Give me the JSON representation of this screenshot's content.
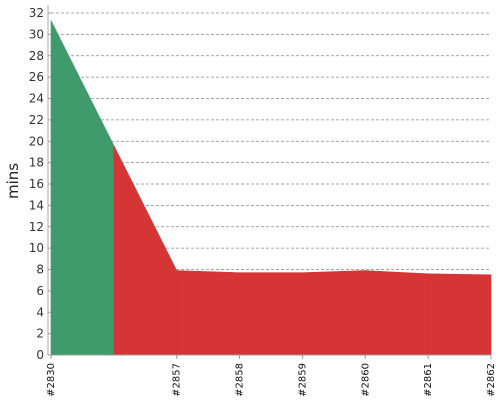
{
  "chart_data": {
    "type": "area",
    "title": "",
    "xlabel": "",
    "ylabel": "mins",
    "ylim": [
      0,
      32
    ],
    "yticks": [
      0,
      2,
      4,
      6,
      8,
      10,
      12,
      14,
      16,
      18,
      20,
      22,
      24,
      26,
      28,
      30,
      32
    ],
    "grid": true,
    "x": [
      "#2830",
      "",
      "#2857",
      "#2858",
      "#2859",
      "#2860",
      "#2861",
      "#2862"
    ],
    "x_tick_labels": [
      "#2830",
      "#2857",
      "#2858",
      "#2859",
      "#2860",
      "#2861",
      "#2862"
    ],
    "values": [
      31.3,
      19.6,
      7.9,
      7.7,
      7.7,
      7.9,
      7.6,
      7.5
    ],
    "segment_colors": [
      "#3f9b6b",
      "#d63535",
      "#d63535",
      "#d63535",
      "#d63535",
      "#d63535",
      "#d63535"
    ]
  }
}
